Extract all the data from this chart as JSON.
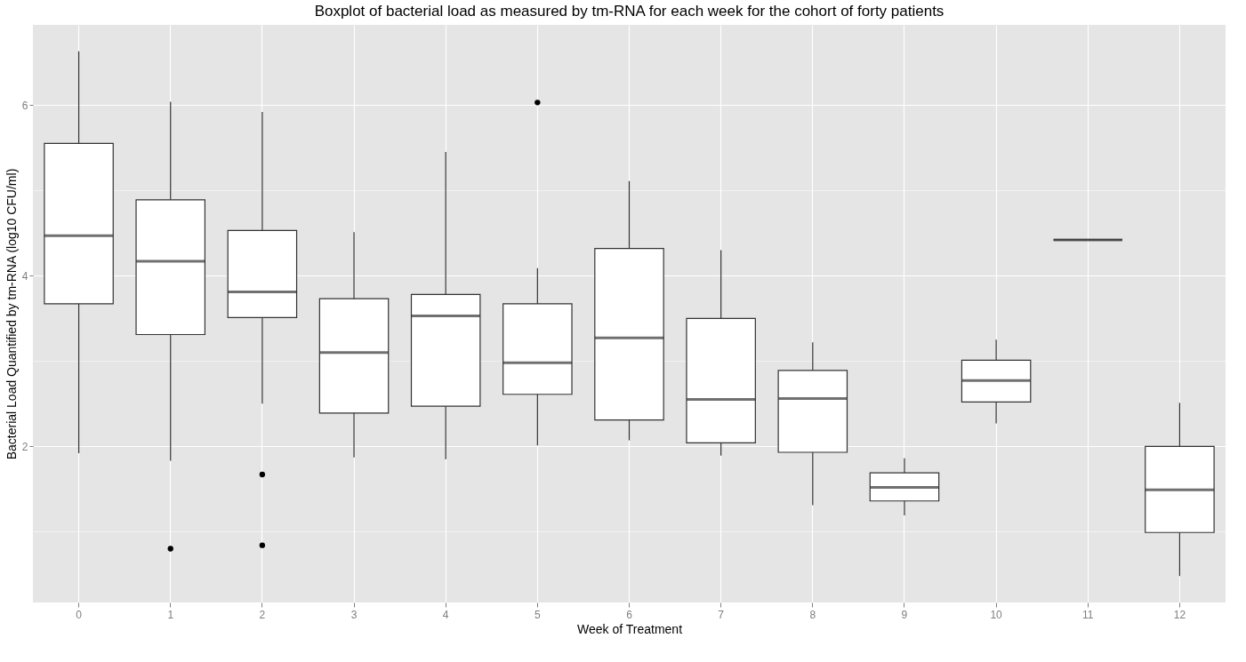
{
  "chart_data": {
    "type": "box",
    "title": "Boxplot of bacterial load as measured by tm-RNA for each week for the cohort of forty patients",
    "xlabel": "Week of Treatment",
    "ylabel": "Bacterial Load Quantified by tm-RNA (log10 CFU/ml)",
    "categories": [
      "0",
      "1",
      "2",
      "3",
      "4",
      "5",
      "6",
      "7",
      "8",
      "9",
      "10",
      "11",
      "12"
    ],
    "boxes": [
      {
        "low": 1.92,
        "q1": 3.67,
        "median": 4.47,
        "q3": 5.55,
        "high": 6.63
      },
      {
        "low": 1.83,
        "q1": 3.31,
        "median": 4.17,
        "q3": 4.89,
        "high": 6.04,
        "outliers": [
          0.8
        ]
      },
      {
        "low": 2.5,
        "q1": 3.51,
        "median": 3.81,
        "q3": 4.53,
        "high": 5.92,
        "outliers": [
          1.67,
          0.84
        ]
      },
      {
        "low": 1.87,
        "q1": 2.39,
        "median": 3.1,
        "q3": 3.73,
        "high": 4.51
      },
      {
        "low": 1.85,
        "q1": 2.47,
        "median": 3.53,
        "q3": 3.78,
        "high": 5.45
      },
      {
        "low": 2.01,
        "q1": 2.61,
        "median": 2.98,
        "q3": 3.67,
        "high": 4.09,
        "outliers": [
          6.03
        ]
      },
      {
        "low": 2.07,
        "q1": 2.31,
        "median": 3.27,
        "q3": 4.32,
        "high": 5.11
      },
      {
        "low": 1.89,
        "q1": 2.04,
        "median": 2.55,
        "q3": 3.5,
        "high": 4.3
      },
      {
        "low": 1.31,
        "q1": 1.93,
        "median": 2.56,
        "q3": 2.89,
        "high": 3.22
      },
      {
        "low": 1.19,
        "q1": 1.36,
        "median": 1.52,
        "q3": 1.69,
        "high": 1.86
      },
      {
        "low": 2.27,
        "q1": 2.52,
        "median": 2.77,
        "q3": 3.01,
        "high": 3.25
      },
      {
        "low": 4.42,
        "q1": 4.42,
        "median": 4.42,
        "q3": 4.42,
        "high": 4.42
      },
      {
        "low": 0.48,
        "q1": 0.99,
        "median": 1.49,
        "q3": 2.0,
        "high": 2.51
      }
    ],
    "ylim": [
      0.17,
      6.94
    ],
    "yticks": [
      {
        "value": 1,
        "label": null
      },
      2,
      {
        "value": 3,
        "label": null
      },
      4,
      {
        "value": 5,
        "label": null
      },
      6
    ],
    "grid": true
  }
}
